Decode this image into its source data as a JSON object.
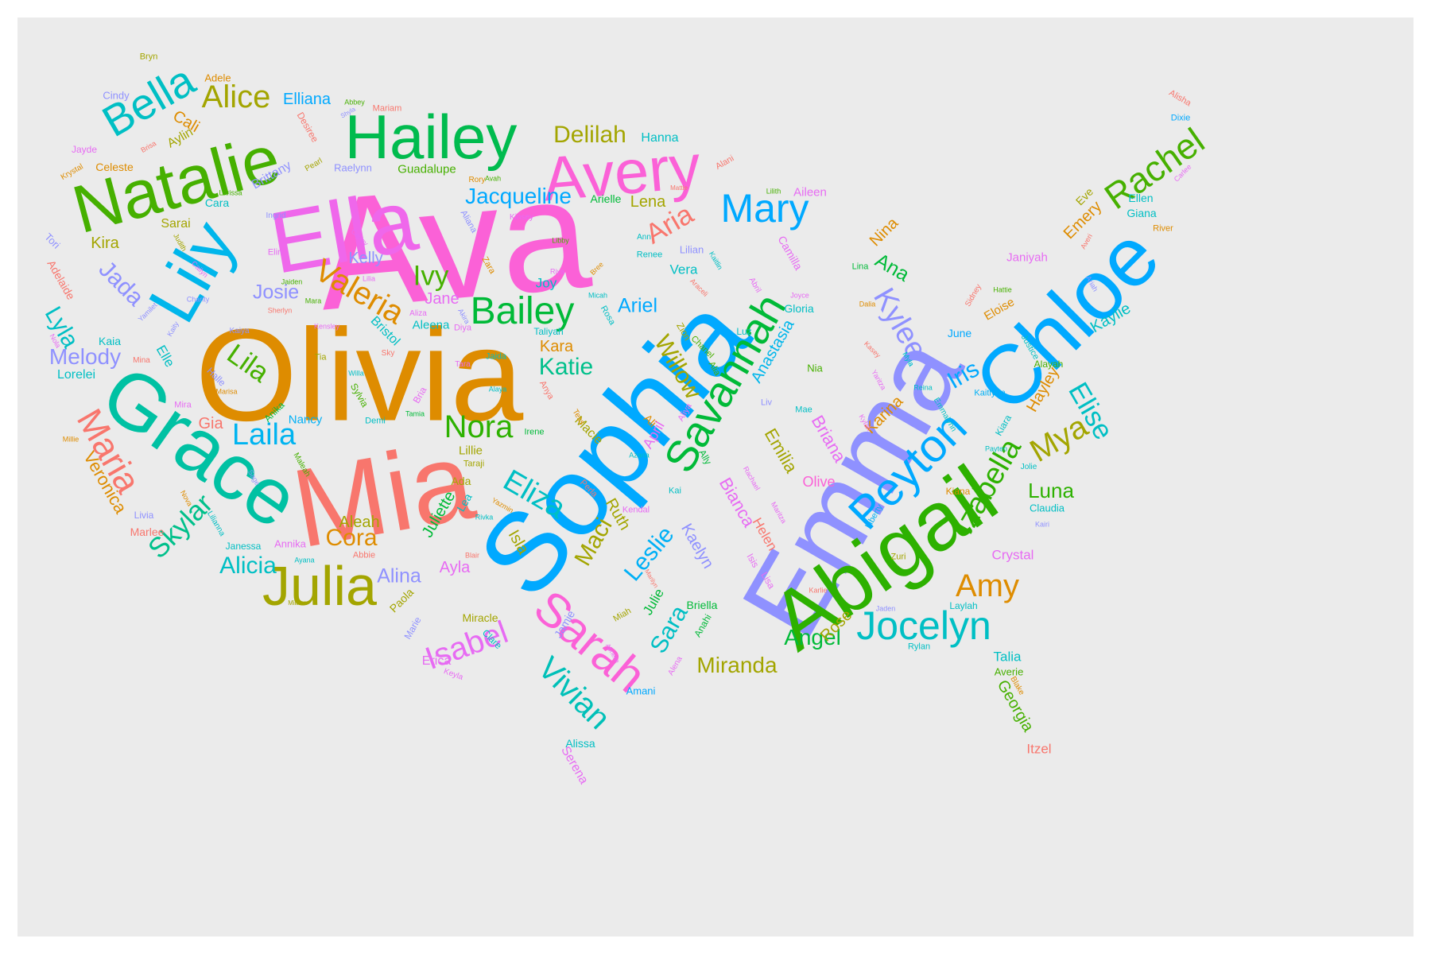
{
  "words": [
    {
      "text": "Ava",
      "color": "#fb61d7"
    },
    {
      "text": "Olivia",
      "color": "#de8c00"
    },
    {
      "text": "Sophia",
      "color": "#00a9ff"
    },
    {
      "text": "Emma",
      "color": "#8f91ff"
    },
    {
      "text": "Mia",
      "color": "#f8766d"
    },
    {
      "text": "Abigail",
      "color": "#2db100"
    },
    {
      "text": "Chloe",
      "color": "#00a9ff"
    },
    {
      "text": "Ella",
      "color": "#ef67eb"
    },
    {
      "text": "Grace",
      "color": "#00c1a3"
    },
    {
      "text": "Lily",
      "color": "#00b6eb"
    },
    {
      "text": "Natalie",
      "color": "#46b000"
    },
    {
      "text": "Hailey",
      "color": "#00bb4e"
    },
    {
      "text": "Avery",
      "color": "#fb61d7"
    },
    {
      "text": "Savannah",
      "color": "#00ba38"
    },
    {
      "text": "Peyton",
      "color": "#00a9ff"
    },
    {
      "text": "Julia",
      "color": "#a3a500"
    },
    {
      "text": "Sarah",
      "color": "#fb61d7"
    },
    {
      "text": "Bailey",
      "color": "#00ba38"
    },
    {
      "text": "Mary",
      "color": "#00a9ff"
    },
    {
      "text": "Jocelyn",
      "color": "#00bfc4"
    },
    {
      "text": "Bella",
      "color": "#00bfc4"
    },
    {
      "text": "Rachel",
      "color": "#46b000"
    },
    {
      "text": "Valeria",
      "color": "#de8c00"
    },
    {
      "text": "Maria",
      "color": "#f8766d"
    },
    {
      "text": "Alice",
      "color": "#a3a500"
    },
    {
      "text": "Izabella",
      "color": "#2db100"
    },
    {
      "text": "Laila",
      "color": "#00b4f0"
    },
    {
      "text": "Isabel",
      "color": "#e76bf3"
    },
    {
      "text": "Vivian",
      "color": "#00c0b8"
    },
    {
      "text": "Nora",
      "color": "#2db100"
    },
    {
      "text": "Mya",
      "color": "#a3a500"
    },
    {
      "text": "Kylee",
      "color": "#8f91ff"
    },
    {
      "text": "Eliza",
      "color": "#00bfc4"
    },
    {
      "text": "Delilah",
      "color": "#a3a500"
    },
    {
      "text": "Skylar",
      "color": "#00c08b"
    },
    {
      "text": "Leslie",
      "color": "#00b0f6"
    },
    {
      "text": "Maci",
      "color": "#a3a500"
    },
    {
      "text": "Elise",
      "color": "#00bfc4"
    },
    {
      "text": "Jacqueline",
      "color": "#00a9ff"
    },
    {
      "text": "Lila",
      "color": "#46b000"
    },
    {
      "text": "Aria",
      "color": "#f8766d"
    },
    {
      "text": "Ivy",
      "color": "#46b000"
    },
    {
      "text": "Amy",
      "color": "#de8c00"
    },
    {
      "text": "Angel",
      "color": "#00ba38"
    },
    {
      "text": "Willow",
      "color": "#a3a500"
    },
    {
      "text": "Anastasia",
      "color": "#00b6eb"
    },
    {
      "text": "Emilia",
      "color": "#a3a500"
    },
    {
      "text": "Luna",
      "color": "#2db100"
    },
    {
      "text": "Katie",
      "color": "#00c08b"
    },
    {
      "text": "Ana",
      "color": "#00ba38"
    },
    {
      "text": "Alicia",
      "color": "#00bfc4"
    },
    {
      "text": "Cora",
      "color": "#de8c00"
    },
    {
      "text": "Miranda",
      "color": "#a3a500"
    },
    {
      "text": "Iris",
      "color": "#00a9ff"
    },
    {
      "text": "Sara",
      "color": "#00bfc4"
    },
    {
      "text": "Jada",
      "color": "#8f91ff"
    },
    {
      "text": "Lyla",
      "color": "#00bfc4"
    },
    {
      "text": "Melody",
      "color": "#8f91ff"
    },
    {
      "text": "Veronica",
      "color": "#de8c00"
    },
    {
      "text": "Briana",
      "color": "#e76bf3"
    },
    {
      "text": "Bianca",
      "color": "#e76bf3"
    },
    {
      "text": "Josie",
      "color": "#8f91ff"
    },
    {
      "text": "Ariel",
      "color": "#00a9ff"
    },
    {
      "text": "Kaylie",
      "color": "#00bfc4"
    },
    {
      "text": "Kara",
      "color": "#de8c00"
    },
    {
      "text": "Ayla",
      "color": "#e76bf3"
    },
    {
      "text": "Alina",
      "color": "#8f91ff"
    },
    {
      "text": "Juliette",
      "color": "#00ba38"
    },
    {
      "text": "Isla",
      "color": "#a3a500"
    },
    {
      "text": "Rose",
      "color": "#a3a500"
    },
    {
      "text": "Ruth",
      "color": "#a3a500"
    },
    {
      "text": "Kaelyn",
      "color": "#8f91ff"
    },
    {
      "text": "Hayley",
      "color": "#de8c00"
    },
    {
      "text": "Karina",
      "color": "#de8c00"
    },
    {
      "text": "Georgia",
      "color": "#46b000"
    },
    {
      "text": "Nina",
      "color": "#de8c00"
    },
    {
      "text": "Emery",
      "color": "#de8c00"
    },
    {
      "text": "Gloria",
      "color": "#00bfc4"
    },
    {
      "text": "Kelly",
      "color": "#8f91ff"
    },
    {
      "text": "Olive",
      "color": "#fb61d7"
    },
    {
      "text": "Crystal",
      "color": "#e76bf3"
    },
    {
      "text": "Helen",
      "color": "#f8766d"
    },
    {
      "text": "Talia",
      "color": "#00bfc4"
    },
    {
      "text": "Itzel",
      "color": "#f8766d"
    },
    {
      "text": "Julie",
      "color": "#00ba38"
    },
    {
      "text": "Gia",
      "color": "#f8766d"
    },
    {
      "text": "Myla",
      "color": "#00b0f6"
    },
    {
      "text": "Kira",
      "color": "#a3a500"
    },
    {
      "text": "Cali",
      "color": "#de8c00"
    },
    {
      "text": "Camilla",
      "color": "#e76bf3"
    },
    {
      "text": "Joy",
      "color": "#00bfc4"
    },
    {
      "text": "Lena",
      "color": "#a3a500"
    },
    {
      "text": "Vera",
      "color": "#00bfc4"
    },
    {
      "text": "Elliana",
      "color": "#00a9ff"
    },
    {
      "text": "Hanna",
      "color": "#00bfc4"
    },
    {
      "text": "Jane",
      "color": "#e76bf3"
    },
    {
      "text": "Elle",
      "color": "#00bfc4"
    },
    {
      "text": "Lorelei",
      "color": "#00bfc4"
    },
    {
      "text": "Kaia",
      "color": "#00bfc4"
    },
    {
      "text": "Aleah",
      "color": "#a3a500"
    },
    {
      "text": "Erica",
      "color": "#e76bf3"
    },
    {
      "text": "Alissa",
      "color": "#00bfc4"
    },
    {
      "text": "Serena",
      "color": "#e76bf3"
    },
    {
      "text": "Eloise",
      "color": "#de8c00"
    },
    {
      "text": "Janiyah",
      "color": "#e76bf3"
    },
    {
      "text": "Zion",
      "color": "#a3a500"
    },
    {
      "text": "Eve",
      "color": "#a3a500"
    },
    {
      "text": "Ellen",
      "color": "#00bfc4"
    },
    {
      "text": "Giana",
      "color": "#00bfc4"
    },
    {
      "text": "Aileen",
      "color": "#e76bf3"
    },
    {
      "text": "Bristol",
      "color": "#00bfc4"
    },
    {
      "text": "Aleena",
      "color": "#00bfc4"
    },
    {
      "text": "Taliyah",
      "color": "#00bfc4"
    },
    {
      "text": "Lillie",
      "color": "#a3a500"
    },
    {
      "text": "April",
      "color": "#e76bf3"
    },
    {
      "text": "Macie",
      "color": "#a3a500"
    },
    {
      "text": "Ada",
      "color": "#a3a500"
    },
    {
      "text": "Lea",
      "color": "#00bfc4"
    },
    {
      "text": "Guadalupe",
      "color": "#46b000"
    },
    {
      "text": "Arielle",
      "color": "#00ba38"
    },
    {
      "text": "Raelynn",
      "color": "#8f91ff"
    },
    {
      "text": "Brittany",
      "color": "#8f91ff"
    },
    {
      "text": "Sarai",
      "color": "#a3a500"
    },
    {
      "text": "Aylin",
      "color": "#a3a500"
    },
    {
      "text": "Celeste",
      "color": "#de8c00"
    },
    {
      "text": "Cindy",
      "color": "#8f91ff"
    },
    {
      "text": "Jayde",
      "color": "#e76bf3"
    },
    {
      "text": "Adele",
      "color": "#de8c00"
    },
    {
      "text": "Bryn",
      "color": "#a3a500"
    },
    {
      "text": "Desiree",
      "color": "#f8766d"
    },
    {
      "text": "Mariam",
      "color": "#f8766d"
    },
    {
      "text": "Abbey",
      "color": "#46b000"
    },
    {
      "text": "Alani",
      "color": "#f8766d"
    },
    {
      "text": "Alisha",
      "color": "#f8766d"
    },
    {
      "text": "Dixie",
      "color": "#00a9ff"
    },
    {
      "text": "River",
      "color": "#de8c00"
    },
    {
      "text": "Carlee",
      "color": "#e76bf3"
    },
    {
      "text": "Cara",
      "color": "#00bfc4"
    },
    {
      "text": "Tori",
      "color": "#8f91ff"
    },
    {
      "text": "Adelaide",
      "color": "#f8766d"
    },
    {
      "text": "Nola",
      "color": "#e76bf3"
    },
    {
      "text": "Nancy",
      "color": "#00b0f6"
    },
    {
      "text": "Anika",
      "color": "#00ba38"
    },
    {
      "text": "Demi",
      "color": "#00bfc4"
    },
    {
      "text": "Sylvia",
      "color": "#46b000"
    },
    {
      "text": "Mira",
      "color": "#e76bf3"
    },
    {
      "text": "Millie",
      "color": "#de8c00"
    },
    {
      "text": "Livia",
      "color": "#8f91ff"
    },
    {
      "text": "Marlee",
      "color": "#f8766d"
    },
    {
      "text": "Janessa",
      "color": "#00bfc4"
    },
    {
      "text": "Annika",
      "color": "#e76bf3"
    },
    {
      "text": "Abbie",
      "color": "#f8766d"
    },
    {
      "text": "Ayana",
      "color": "#00bfc4"
    },
    {
      "text": "Milana",
      "color": "#a3a500"
    },
    {
      "text": "Paola",
      "color": "#a3a500"
    },
    {
      "text": "Marie",
      "color": "#8f91ff"
    },
    {
      "text": "Keyla",
      "color": "#e76bf3"
    },
    {
      "text": "Miracle",
      "color": "#a3a500"
    },
    {
      "text": "Clare",
      "color": "#00bfc4"
    },
    {
      "text": "Jamie",
      "color": "#8f91ff"
    },
    {
      "text": "Amani",
      "color": "#00a9ff"
    },
    {
      "text": "Anahi",
      "color": "#00ba38"
    },
    {
      "text": "Alena",
      "color": "#e76bf3"
    },
    {
      "text": "Briella",
      "color": "#00ba38"
    },
    {
      "text": "Zuri",
      "color": "#a3a500"
    },
    {
      "text": "Laylah",
      "color": "#00bfc4"
    },
    {
      "text": "Rylan",
      "color": "#00bfc4"
    },
    {
      "text": "Averie",
      "color": "#46b000"
    },
    {
      "text": "Blake",
      "color": "#de8c00"
    },
    {
      "text": "Claudia",
      "color": "#00bfc4"
    },
    {
      "text": "Kairi",
      "color": "#8f91ff"
    },
    {
      "text": "Kiana",
      "color": "#de8c00"
    },
    {
      "text": "Jolie",
      "color": "#00bfc4"
    },
    {
      "text": "Payten",
      "color": "#00bfc4"
    },
    {
      "text": "Kaitlynn",
      "color": "#00b0f6"
    },
    {
      "text": "Emmalynn",
      "color": "#00bfc4"
    },
    {
      "text": "Reina",
      "color": "#00bfc4"
    },
    {
      "text": "Alayah",
      "color": "#46b000"
    },
    {
      "text": "Justice",
      "color": "#00bfc4"
    },
    {
      "text": "Kiara",
      "color": "#00bfc4"
    },
    {
      "text": "June",
      "color": "#00a9ff"
    },
    {
      "text": "Sidney",
      "color": "#f8766d"
    },
    {
      "text": "Hattie",
      "color": "#46b000"
    },
    {
      "text": "Ariah",
      "color": "#8f91ff"
    },
    {
      "text": "Averi",
      "color": "#f8766d"
    },
    {
      "text": "Dalia",
      "color": "#de8c00"
    },
    {
      "text": "Lina",
      "color": "#00ba38"
    },
    {
      "text": "Lilith",
      "color": "#46b000"
    },
    {
      "text": "Joyce",
      "color": "#e76bf3"
    },
    {
      "text": "Luz",
      "color": "#00bfc4"
    },
    {
      "text": "Nia",
      "color": "#46b000"
    },
    {
      "text": "Liv",
      "color": "#8f91ff"
    },
    {
      "text": "Mae",
      "color": "#00bfc4"
    },
    {
      "text": "Kasey",
      "color": "#f8766d"
    },
    {
      "text": "Yaritza",
      "color": "#e76bf3"
    },
    {
      "text": "Myla",
      "color": "#00bfc4"
    },
    {
      "text": "Liberty",
      "color": "#00b0f6"
    },
    {
      "text": "Isis",
      "color": "#e76bf3"
    },
    {
      "text": "Lisa",
      "color": "#e76bf3"
    },
    {
      "text": "Karlie",
      "color": "#f8766d"
    },
    {
      "text": "Jaden",
      "color": "#8f91ff"
    },
    {
      "text": "Rachael",
      "color": "#e76bf3"
    },
    {
      "text": "Maritza",
      "color": "#e76bf3"
    },
    {
      "text": "Kylah",
      "color": "#e76bf3"
    },
    {
      "text": "Alia",
      "color": "#46b000"
    },
    {
      "text": "Chanel",
      "color": "#46b000"
    },
    {
      "text": "Aliya",
      "color": "#e76bf3"
    },
    {
      "text": "Ally",
      "color": "#00ba38"
    },
    {
      "text": "Ali",
      "color": "#de8c00"
    },
    {
      "text": "Azaria",
      "color": "#00bfc4"
    },
    {
      "text": "Kai",
      "color": "#00bfc4"
    },
    {
      "text": "Kendal",
      "color": "#e76bf3"
    },
    {
      "text": "Perla",
      "color": "#f8766d"
    },
    {
      "text": "Tess",
      "color": "#de8c00"
    },
    {
      "text": "Irene",
      "color": "#00ba38"
    },
    {
      "text": "Tamia",
      "color": "#00ba38"
    },
    {
      "text": "Bria",
      "color": "#e76bf3"
    },
    {
      "text": "Alaya",
      "color": "#00bfc4"
    },
    {
      "text": "Anya",
      "color": "#f8766d"
    },
    {
      "text": "Jaida",
      "color": "#00bfc4"
    },
    {
      "text": "Tara",
      "color": "#e76bf3"
    },
    {
      "text": "Diya",
      "color": "#e76bf3"
    },
    {
      "text": "Akira",
      "color": "#8f91ff"
    },
    {
      "text": "Aliza",
      "color": "#e76bf3"
    },
    {
      "text": "Sky",
      "color": "#f8766d"
    },
    {
      "text": "Willa",
      "color": "#00bfc4"
    },
    {
      "text": "Tia",
      "color": "#a3a500"
    },
    {
      "text": "Kensley",
      "color": "#e76bf3"
    },
    {
      "text": "Sherlyn",
      "color": "#f8766d"
    },
    {
      "text": "Jaiden",
      "color": "#46b000"
    },
    {
      "text": "Mara",
      "color": "#46b000"
    },
    {
      "text": "Lilia",
      "color": "#e76bf3"
    },
    {
      "text": "Elin",
      "color": "#e76bf3"
    },
    {
      "text": "Carley",
      "color": "#e76bf3"
    },
    {
      "text": "Ingrid",
      "color": "#8f91ff"
    },
    {
      "text": "Kinsey",
      "color": "#e76bf3"
    },
    {
      "text": "Libby",
      "color": "#46b000"
    },
    {
      "text": "Riya",
      "color": "#e76bf3"
    },
    {
      "text": "Bree",
      "color": "#de8c00"
    },
    {
      "text": "Zara",
      "color": "#de8c00"
    },
    {
      "text": "Aliana",
      "color": "#8f91ff"
    },
    {
      "text": "Ann",
      "color": "#00bfc4"
    },
    {
      "text": "Renee",
      "color": "#00bfc4"
    },
    {
      "text": "Lilian",
      "color": "#8f91ff"
    },
    {
      "text": "Micah",
      "color": "#00bfc4"
    },
    {
      "text": "Rosa",
      "color": "#00bfc4"
    },
    {
      "text": "Kaitlin",
      "color": "#00bfc4"
    },
    {
      "text": "Abril",
      "color": "#e76bf3"
    },
    {
      "text": "Araceli",
      "color": "#f8766d"
    },
    {
      "text": "Mattie",
      "color": "#f8766d"
    },
    {
      "text": "Rory",
      "color": "#de8c00"
    },
    {
      "text": "Avah",
      "color": "#46b000"
    },
    {
      "text": "Pearl",
      "color": "#a3a500"
    },
    {
      "text": "Shyla",
      "color": "#8f91ff"
    },
    {
      "text": "Larissa",
      "color": "#46b000"
    },
    {
      "text": "Judith",
      "color": "#a3a500"
    },
    {
      "text": "Krystal",
      "color": "#de8c00"
    },
    {
      "text": "Brisa",
      "color": "#f8766d"
    },
    {
      "text": "Cailyn",
      "color": "#e76bf3"
    },
    {
      "text": "Charity",
      "color": "#8f91ff"
    },
    {
      "text": "Yamilet",
      "color": "#8f91ff"
    },
    {
      "text": "Kaiya",
      "color": "#8f91ff"
    },
    {
      "text": "Kaity",
      "color": "#8f91ff"
    },
    {
      "text": "Halle",
      "color": "#8f91ff"
    },
    {
      "text": "Marisa",
      "color": "#de8c00"
    },
    {
      "text": "Mina",
      "color": "#f8766d"
    },
    {
      "text": "Maleah",
      "color": "#46b000"
    },
    {
      "text": "Sage",
      "color": "#8f91ff"
    },
    {
      "text": "Nova",
      "color": "#de8c00"
    },
    {
      "text": "Lilianna",
      "color": "#00bfc4"
    },
    {
      "text": "Taraji",
      "color": "#a3a500"
    },
    {
      "text": "Rivka",
      "color": "#00bfc4"
    },
    {
      "text": "Yazmin",
      "color": "#de8c00"
    },
    {
      "text": "Blair",
      "color": "#f8766d"
    },
    {
      "text": "Miah",
      "color": "#a3a500"
    },
    {
      "text": "Marilyn",
      "color": "#f8766d"
    },
    {
      "text": "Abrielle",
      "color": "#e76bf3"
    },
    {
      "text": "Brittany",
      "color": "#8f91ff"
    }
  ]
}
